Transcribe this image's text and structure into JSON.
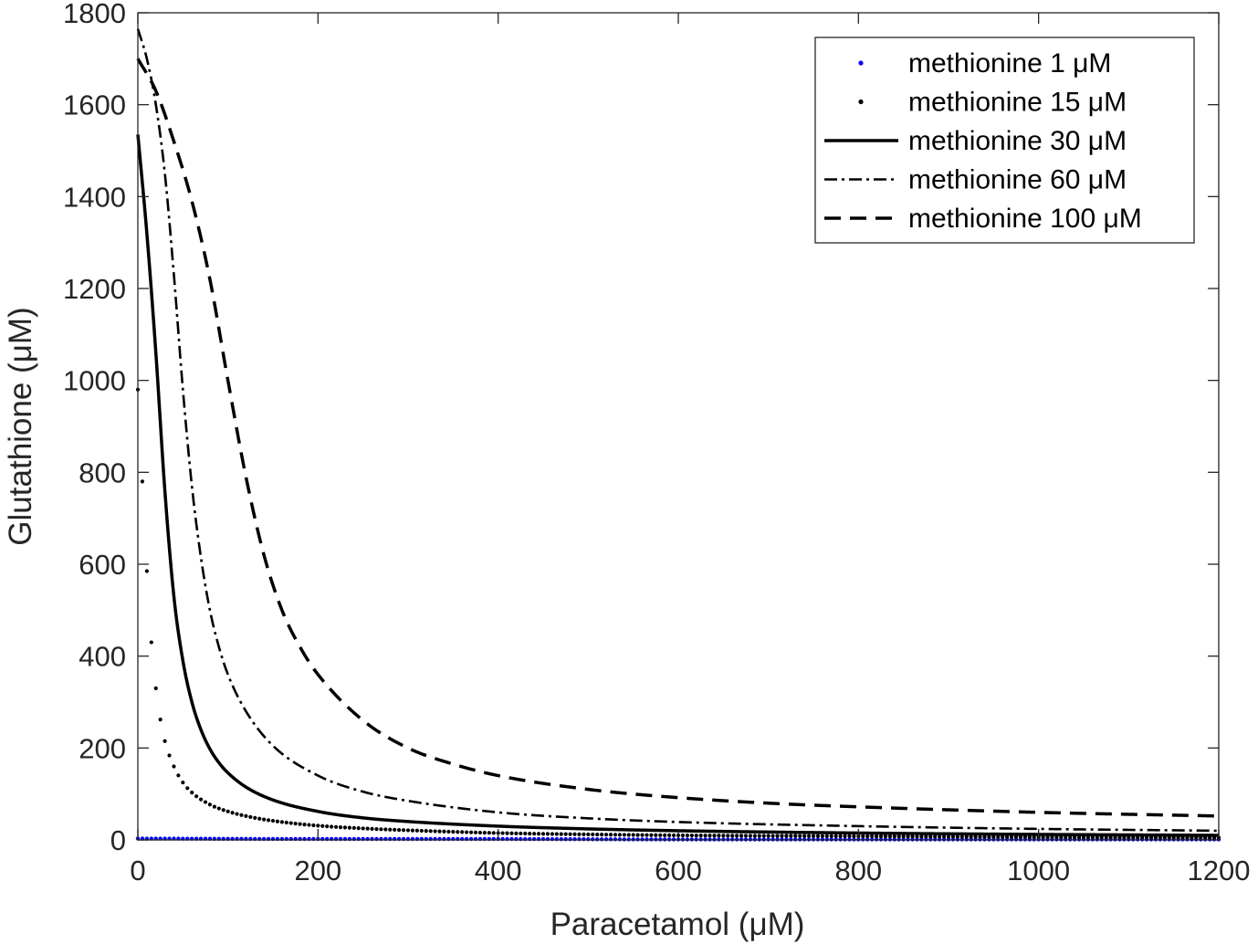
{
  "chart_data": {
    "type": "line",
    "title": "",
    "xlabel": "Paracetamol (μM)",
    "ylabel": "Glutathione (μM)",
    "xlim": [
      0,
      1200
    ],
    "ylim": [
      0,
      1800
    ],
    "xticks": [
      0,
      200,
      400,
      600,
      800,
      1000,
      1200
    ],
    "yticks": [
      0,
      200,
      400,
      600,
      800,
      1000,
      1200,
      1400,
      1600,
      1800
    ],
    "grid": false,
    "legend_position": "top-right",
    "series": [
      {
        "name": "methionine 1 μM",
        "style": "dots",
        "color": "#0000ff",
        "x": [
          0,
          200,
          400,
          600,
          800,
          1000,
          1200
        ],
        "y": [
          3,
          2,
          2,
          1,
          1,
          1,
          1
        ]
      },
      {
        "name": "methionine 15 μM",
        "style": "dots",
        "color": "#000000",
        "x": [
          0,
          5,
          10,
          15,
          20,
          25,
          30,
          40,
          50,
          60,
          80,
          100,
          130,
          160,
          200,
          250,
          300,
          400,
          500,
          600,
          800,
          1000,
          1200
        ],
        "y": [
          980,
          780,
          585,
          430,
          330,
          262,
          215,
          160,
          125,
          103,
          77,
          62,
          48,
          39,
          31,
          25,
          21,
          15,
          12,
          10,
          8,
          6,
          5
        ]
      },
      {
        "name": "methionine 30 μM",
        "style": "solid",
        "color": "#000000",
        "x": [
          0,
          10,
          20,
          30,
          40,
          50,
          60,
          70,
          80,
          90,
          100,
          120,
          150,
          200,
          250,
          300,
          400,
          500,
          600,
          800,
          1000,
          1200
        ],
        "y": [
          1535,
          1320,
          1060,
          760,
          530,
          390,
          300,
          240,
          198,
          168,
          146,
          115,
          87,
          62,
          48,
          40,
          30,
          24,
          20,
          15,
          12,
          10
        ]
      },
      {
        "name": "methionine 60 μM",
        "style": "dashdot",
        "color": "#000000",
        "x": [
          0,
          10,
          20,
          30,
          40,
          50,
          60,
          70,
          80,
          90,
          100,
          120,
          150,
          200,
          250,
          300,
          400,
          500,
          600,
          800,
          1000,
          1200
        ],
        "y": [
          1765,
          1700,
          1600,
          1450,
          1230,
          980,
          770,
          615,
          500,
          420,
          360,
          280,
          205,
          140,
          105,
          85,
          60,
          47,
          39,
          30,
          24,
          20
        ]
      },
      {
        "name": "methionine 100 μM",
        "style": "dashed",
        "color": "#000000",
        "x": [
          0,
          20,
          40,
          60,
          80,
          100,
          120,
          140,
          160,
          180,
          200,
          250,
          300,
          350,
          400,
          500,
          600,
          700,
          800,
          1000,
          1200
        ],
        "y": [
          1700,
          1630,
          1520,
          1390,
          1220,
          1000,
          790,
          620,
          500,
          420,
          360,
          260,
          200,
          165,
          140,
          110,
          92,
          80,
          72,
          60,
          52
        ]
      }
    ]
  }
}
